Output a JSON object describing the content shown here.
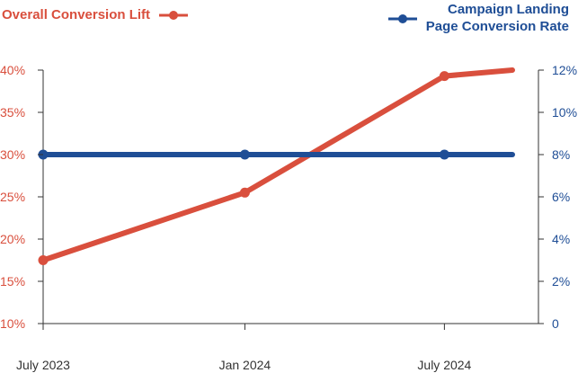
{
  "chart_data": {
    "type": "line",
    "title": "",
    "categories": [
      "July 2023",
      "Jan 2024",
      "July 2024"
    ],
    "x": [
      "2023-07-01",
      "2024-01-01",
      "2024-07-01",
      "2024-09-01"
    ],
    "series": [
      {
        "name": "Overall Conversion Lift",
        "axis": "left",
        "color": "#d94f3d",
        "x": [
          "2023-07-01",
          "2024-01-01",
          "2024-07-01",
          "2024-09-01"
        ],
        "values": [
          17.5,
          25.5,
          39.3,
          40.0
        ],
        "markers": [
          true,
          true,
          true,
          false
        ]
      },
      {
        "name": "Campaign Landing\nPage Conversion Rate",
        "axis": "right",
        "color": "#1f4e96",
        "x": [
          "2023-07-01",
          "2024-01-01",
          "2024-07-01",
          "2024-09-01"
        ],
        "values": [
          8,
          8,
          8,
          8
        ],
        "markers": [
          true,
          true,
          true,
          false
        ]
      }
    ],
    "y_left": {
      "ticks": [
        "10%",
        "15%",
        "20%",
        "25%",
        "30%",
        "35%",
        "40%"
      ],
      "ylim": [
        10,
        40
      ],
      "color": "#d94f3d"
    },
    "y_right": {
      "ticks": [
        "0",
        "2%",
        "4%",
        "6%",
        "8%",
        "10%",
        "12%"
      ],
      "ylim": [
        0,
        12
      ],
      "color": "#1f4e96"
    },
    "x_ticks": [
      "July 2023",
      "Jan 2024",
      "July 2024"
    ],
    "grid": false,
    "legend": "top"
  }
}
